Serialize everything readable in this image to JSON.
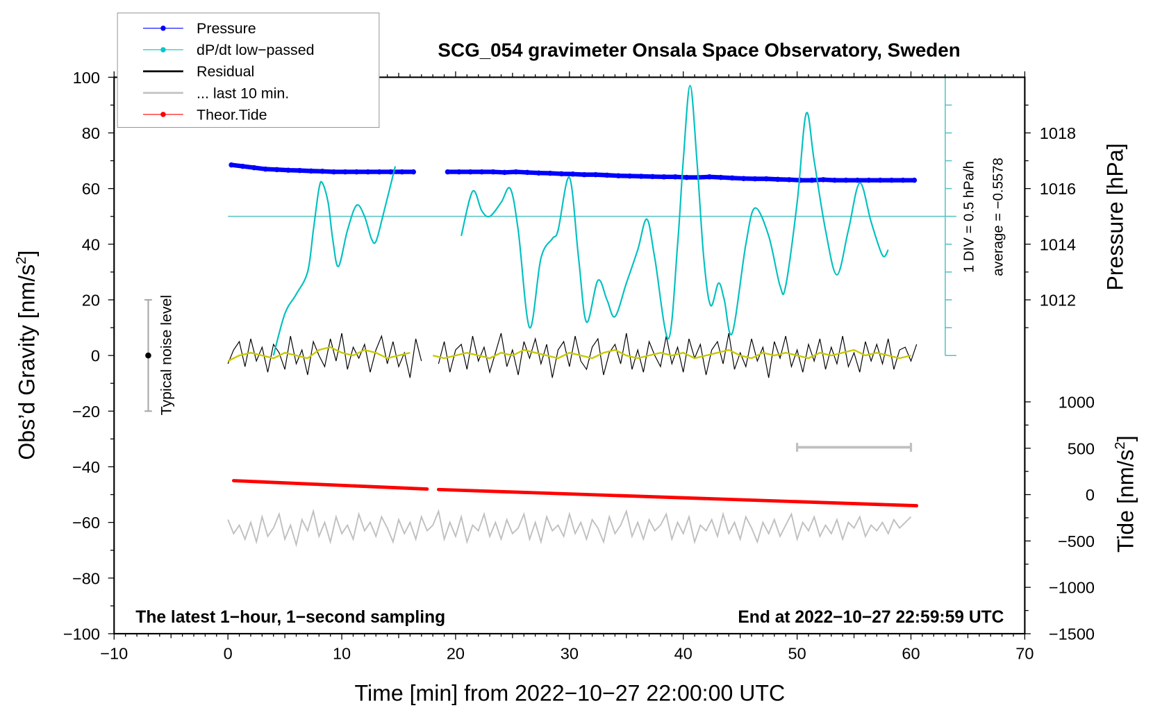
{
  "chart_data": {
    "type": "line",
    "title": "SCG_054 gravimeter Onsala Space Observatory, Sweden",
    "xlabel": "Time [min] from 2022−10−27 22:00:00 UTC",
    "ylabel": {
      "main": "Obs’d Gravity [nm/s",
      "sup": "2",
      "end": "]"
    },
    "y2label_pressure": "Pressure [hPa]",
    "y2label_tide": {
      "main": "Tide [nm/s",
      "sup": "2",
      "end": "]"
    },
    "xlim": [
      -10,
      70
    ],
    "ylim": [
      -100,
      100
    ],
    "xticks": [
      -10,
      0,
      10,
      20,
      30,
      40,
      50,
      60,
      70
    ],
    "xtick_labels": [
      "−10",
      "0",
      "10",
      "20",
      "30",
      "40",
      "50",
      "60",
      "70"
    ],
    "yticks": [
      100,
      80,
      60,
      40,
      20,
      0,
      -20,
      -40,
      -60,
      -80,
      -100
    ],
    "ytick_labels": [
      "100",
      "80",
      "60",
      "40",
      "20",
      "0",
      "−20",
      "−40",
      "−60",
      "−80",
      "−100"
    ],
    "pressure_ticks": [
      1018,
      1016,
      1014,
      1012
    ],
    "pressure_tick_labels": [
      "1018",
      "1016",
      "1014",
      "1012"
    ],
    "tide_ticks": [
      1000,
      500,
      0,
      -500,
      -1000,
      -1500
    ],
    "tide_tick_labels": [
      "1000",
      "500",
      "0",
      "−500",
      "−1000",
      "−1500"
    ],
    "annotations": {
      "bottom_left": "The latest 1−hour, 1−second sampling",
      "bottom_right": "End at 2022−10−27 22:59:59 UTC",
      "noise_label": "Typical noise level",
      "div_label": "1 DIV = 0.5 hPa/h",
      "average_label": "average = −0.5578"
    },
    "noise_level_bar": {
      "t": -7,
      "range": [
        -20,
        20
      ],
      "center": 0
    },
    "last10_bar": {
      "t": [
        50,
        60
      ],
      "y": -33
    },
    "legend": {
      "placement": "top-left",
      "entries": [
        {
          "label": "Pressure",
          "color": "#0000ff",
          "marker": true
        },
        {
          "label": "dP/dt low−passed",
          "color": "#00c8c8",
          "marker": true
        },
        {
          "label": "Residual",
          "color": "#000000",
          "marker": false
        },
        {
          "label": "... last 10 min.",
          "color": "#c0c0c0",
          "marker": false
        },
        {
          "label": "Theor.Tide",
          "color": "#ff0000",
          "marker": true
        }
      ]
    },
    "colors": {
      "pressure": "#0000ff",
      "dpdt": "#00c0c0",
      "dpdt_axis": "#5fc4c4",
      "residual": "#000000",
      "smoothed": "#c8c800",
      "last10": "#c0c0c0",
      "tide": "#ff0000"
    },
    "series": {
      "pressure_hPa": {
        "t0": 0.3,
        "dt_min": 1,
        "values": [
          1016.85,
          1016.8,
          1016.75,
          1016.7,
          1016.68,
          1016.66,
          1016.65,
          1016.63,
          1016.62,
          1016.6,
          1016.6,
          1016.6,
          1016.6,
          1016.6,
          1016.6,
          1016.6,
          1016.6,
          null,
          null,
          1016.6,
          1016.6,
          1016.6,
          1016.6,
          1016.6,
          1016.58,
          1016.6,
          1016.58,
          1016.56,
          1016.55,
          1016.53,
          1016.52,
          1016.5,
          1016.5,
          1016.48,
          1016.46,
          1016.45,
          1016.44,
          1016.43,
          1016.42,
          1016.42,
          1016.4,
          1016.4,
          1016.42,
          1016.4,
          1016.38,
          1016.36,
          1016.35,
          1016.35,
          1016.33,
          1016.32,
          1016.3,
          1016.3,
          1016.32,
          1016.3,
          1016.3,
          1016.3,
          1016.3,
          1016.3,
          1016.3,
          1016.3,
          1016.3
        ]
      },
      "dpdt_div_from_average": {
        "segments": [
          {
            "t": [
              4,
              5,
              6,
              7,
              7.5,
              8,
              8.3,
              8.8,
              9.2,
              9.7,
              10.5,
              11.3,
              12,
              12.6,
              13,
              13.6,
              14.7
            ],
            "div": [
              -5,
              -3.5,
              -2.8,
              -2,
              -0.5,
              1,
              1.2,
              0.5,
              -0.8,
              -1.8,
              -0.5,
              0.4,
              0,
              -0.8,
              -0.9,
              0,
              1.8
            ]
          },
          {
            "t": [
              20.5,
              21.5,
              22.3,
              23,
              24,
              24.8,
              25.5,
              26.5,
              27.5,
              28.5,
              29,
              30,
              30.8,
              31.5,
              32.5,
              33.3,
              34,
              35,
              36,
              36.8,
              37.5,
              38.7,
              39.5,
              40,
              40.6,
              41.2,
              41.8,
              42.4,
              43.1,
              43.6,
              44.3,
              45.5,
              46.3,
              47.5,
              48.5,
              49,
              50,
              50.8,
              51.5,
              52.5,
              53.5,
              54.5,
              55.5,
              56.5,
              57.5,
              58
            ],
            "div": [
              -0.7,
              0.9,
              0.2,
              0,
              0.5,
              1,
              -0.5,
              -4,
              -1.5,
              -0.8,
              -0.5,
              1.4,
              -1.5,
              -3.8,
              -2.3,
              -3,
              -3.6,
              -2.4,
              -1.2,
              -0.1,
              -1.5,
              -4.4,
              -1,
              2,
              4.7,
              2,
              -1.5,
              -3.2,
              -2.4,
              -3,
              -4.2,
              -1,
              0.3,
              -0.7,
              -2.5,
              -2.5,
              0.5,
              3.7,
              2,
              -0.5,
              -2.1,
              -0.5,
              1.2,
              -0.2,
              -1.4,
              -1.2
            ]
          }
        ]
      },
      "residual": {
        "t0": 0,
        "dt_min": 0.5,
        "values": [
          -3,
          2,
          5,
          -4,
          6,
          -2,
          3,
          -6,
          4,
          1,
          -5,
          7,
          -3,
          2,
          -7,
          5,
          0,
          -4,
          6,
          -2,
          8,
          -5,
          3,
          -1,
          4,
          -6,
          2,
          7,
          -3,
          5,
          -4,
          1,
          -8,
          6,
          -2,
          null,
          null,
          -3,
          5,
          -6,
          2,
          4,
          -5,
          7,
          -2,
          3,
          -6,
          1,
          8,
          -4,
          2,
          -7,
          5,
          -1,
          6,
          -3,
          4,
          -8,
          2,
          5,
          -4,
          7,
          -2,
          -5,
          3,
          6,
          -7,
          1,
          4,
          -3,
          8,
          -5,
          2,
          -6,
          5,
          0,
          -4,
          7,
          -3,
          3,
          -6,
          6,
          -1,
          4,
          -7,
          2,
          5,
          -3,
          8,
          -5,
          1,
          -4,
          6,
          -2,
          3,
          -8,
          5,
          -1,
          7,
          -4,
          2,
          -6,
          4,
          -2,
          6,
          -5,
          3,
          -3,
          7,
          -4,
          1,
          -6,
          5,
          -2,
          4,
          -3,
          6,
          -5,
          2,
          3,
          -2,
          4
        ]
      },
      "residual_smoothed": {
        "t0": 0,
        "dt_min": 1,
        "values": [
          -2,
          0,
          1,
          0,
          -1,
          1,
          0,
          -1,
          2,
          3,
          1,
          0,
          2,
          1,
          -1,
          0,
          1,
          null,
          0,
          -1,
          0,
          1,
          0,
          -1,
          1,
          0,
          2,
          1,
          0,
          -1,
          1,
          0,
          -1,
          1,
          2,
          0,
          -1,
          0,
          1,
          0,
          1,
          -1,
          0,
          1,
          2,
          0,
          -1,
          1,
          0,
          1,
          0,
          -1,
          1,
          0,
          1,
          2,
          0,
          1,
          0,
          -1,
          0
        ]
      },
      "last_10_min": {
        "t0": 0,
        "dt_min": 0.5,
        "values": [
          -59,
          -64,
          -61,
          -66,
          -60,
          -67,
          -58,
          -65,
          -62,
          -57,
          -66,
          -61,
          -68,
          -59,
          -63,
          -56,
          -65,
          -60,
          -67,
          -58,
          -64,
          -61,
          -66,
          -57,
          -63,
          -60,
          -65,
          -58,
          -62,
          -67,
          -59,
          -64,
          -60,
          -66,
          -58,
          -63,
          -61,
          -56,
          -66,
          -60,
          -65,
          -58,
          -67,
          -61,
          -63,
          -57,
          -65,
          -60,
          -66,
          -59,
          -64,
          -62,
          -57,
          -66,
          -60,
          -67,
          -58,
          -63,
          -61,
          -65,
          -57,
          -64,
          -60,
          -66,
          -59,
          -62,
          -67,
          -58,
          -64,
          -61,
          -56,
          -65,
          -60,
          -66,
          -59,
          -63,
          -61,
          -57,
          -66,
          -60,
          -64,
          -58,
          -67,
          -61,
          -63,
          -59,
          -65,
          -57,
          -64,
          -60,
          -66,
          -58,
          -62,
          -67,
          -60,
          -64,
          -59,
          -65,
          -61,
          -57,
          -66,
          -60,
          -63,
          -58,
          -65,
          -61,
          -64,
          -59,
          -66,
          -60,
          -62,
          -58,
          -65,
          -61,
          -63,
          -60,
          -64,
          -59,
          -62,
          -60,
          -58
        ]
      },
      "tide_nm_s2": {
        "t": [
          0.5,
          17.5,
          null,
          18.5,
          60.5
        ],
        "values": [
          150,
          60,
          null,
          55,
          -120
        ]
      }
    }
  }
}
